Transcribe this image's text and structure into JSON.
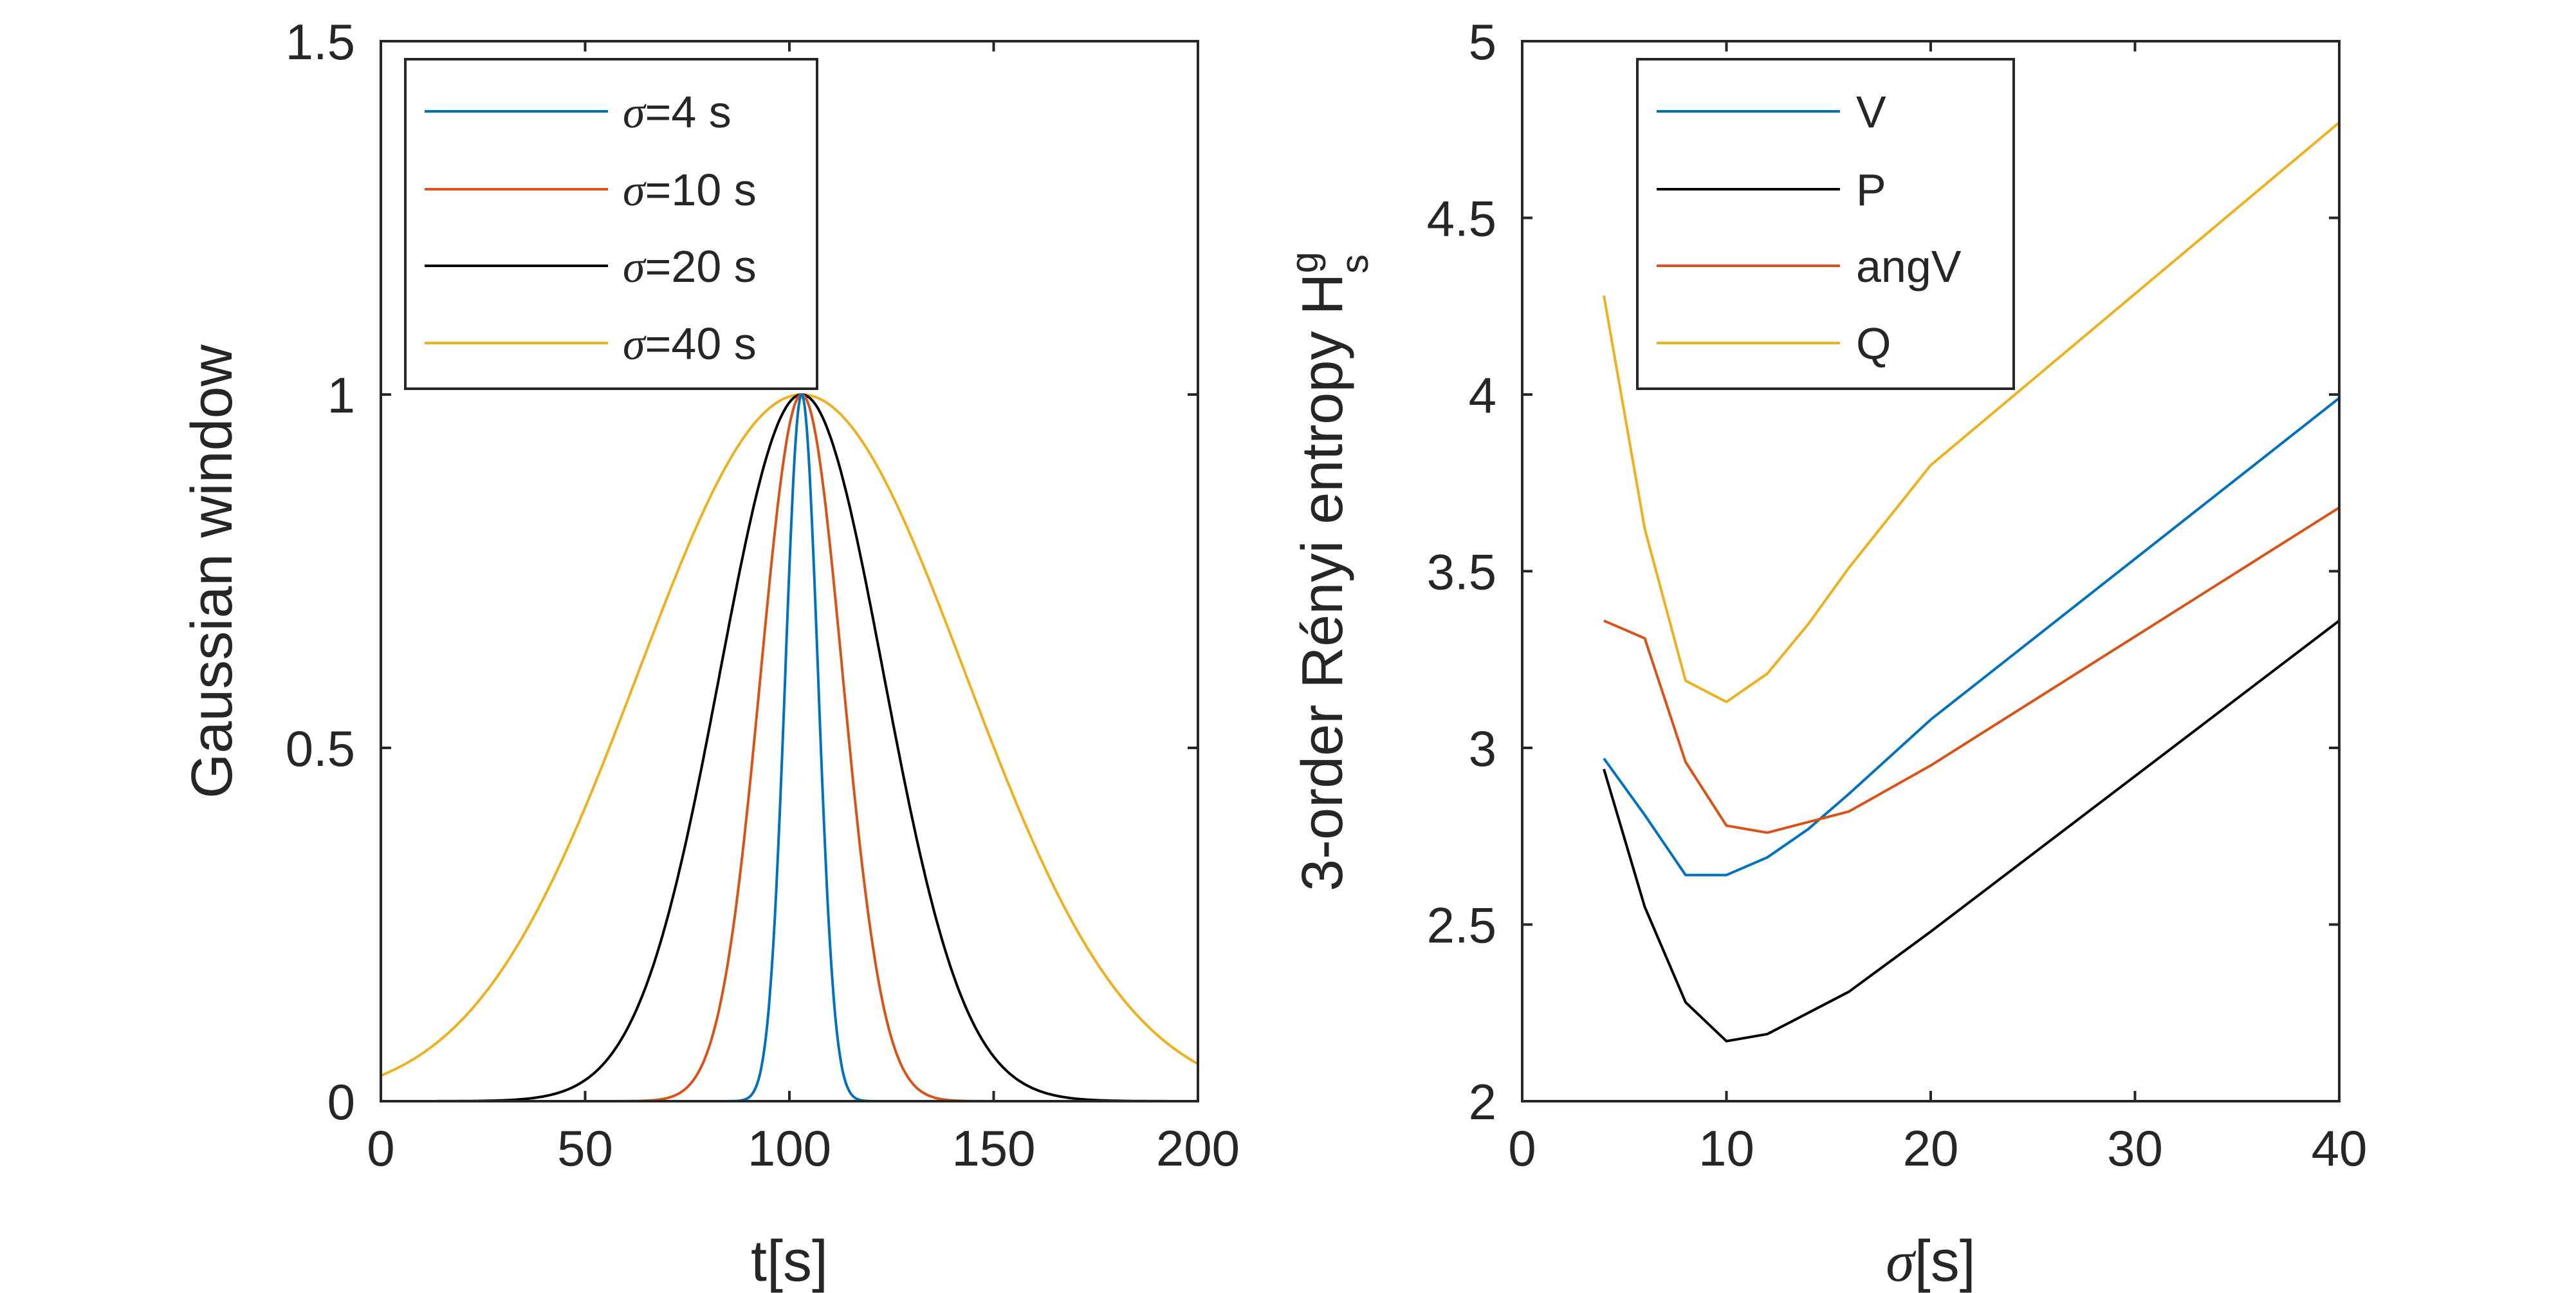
{
  "chart_data": [
    {
      "type": "line",
      "id": "left",
      "xlabel": "t[s]",
      "ylabel": "Gaussian window",
      "xlim": [
        0,
        200
      ],
      "ylim": [
        0,
        1.5
      ],
      "xticks": [
        0,
        50,
        100,
        150,
        200
      ],
      "yticks": [
        0,
        0.5,
        1,
        1.5
      ],
      "xtick_labels": [
        "0",
        "50",
        "100",
        "150",
        "200"
      ],
      "ytick_labels": [
        "0",
        "0.5",
        "1",
        "1.5"
      ],
      "center": 103,
      "legend_position": "top-left",
      "series": [
        {
          "name": "σ=4 s",
          "legend_sym": "σ",
          "legend_text": "=4 s",
          "sigma": 4,
          "color": "#0072BD"
        },
        {
          "name": "σ=10 s",
          "legend_sym": "σ",
          "legend_text": "=10 s",
          "sigma": 10,
          "color": "#D95319"
        },
        {
          "name": "σ=20 s",
          "legend_sym": "σ",
          "legend_text": "=20 s",
          "sigma": 20,
          "color": "#000000"
        },
        {
          "name": "σ=40 s",
          "legend_sym": "σ",
          "legend_text": "=40 s",
          "sigma": 40,
          "color": "#EDB120"
        }
      ]
    },
    {
      "type": "line",
      "id": "right",
      "xlabel_sym": "σ",
      "xlabel": "[s]",
      "ylabel": "3-order Rényi entropy H",
      "ylabel_sup": "g",
      "ylabel_sub": "s",
      "xlim": [
        0,
        40
      ],
      "ylim": [
        2,
        5
      ],
      "xticks": [
        0,
        10,
        20,
        30,
        40
      ],
      "yticks": [
        2,
        2.5,
        3,
        3.5,
        4,
        4.5,
        5
      ],
      "xtick_labels": [
        "0",
        "10",
        "20",
        "30",
        "40"
      ],
      "ytick_labels": [
        "2",
        "2.5",
        "3",
        "3.5",
        "4",
        "4.5",
        "5"
      ],
      "legend_position": "top-left",
      "x": [
        4,
        6,
        8,
        10,
        12,
        14,
        16,
        20,
        40
      ],
      "series": [
        {
          "name": "V",
          "color": "#0072BD",
          "values": [
            2.97,
            2.81,
            2.64,
            2.64,
            2.69,
            2.77,
            2.87,
            3.08,
            3.99
          ]
        },
        {
          "name": "P",
          "color": "#000000",
          "values": [
            2.94,
            2.55,
            2.28,
            2.17,
            2.19,
            2.25,
            2.31,
            2.48,
            3.36
          ]
        },
        {
          "name": "angV",
          "color": "#D95319",
          "values": [
            3.36,
            3.31,
            2.96,
            2.78,
            2.76,
            2.79,
            2.82,
            2.95,
            3.68
          ]
        },
        {
          "name": "Q",
          "color": "#EDB120",
          "values": [
            4.28,
            3.62,
            3.19,
            3.13,
            3.21,
            3.35,
            3.51,
            3.8,
            4.77
          ]
        }
      ]
    }
  ]
}
